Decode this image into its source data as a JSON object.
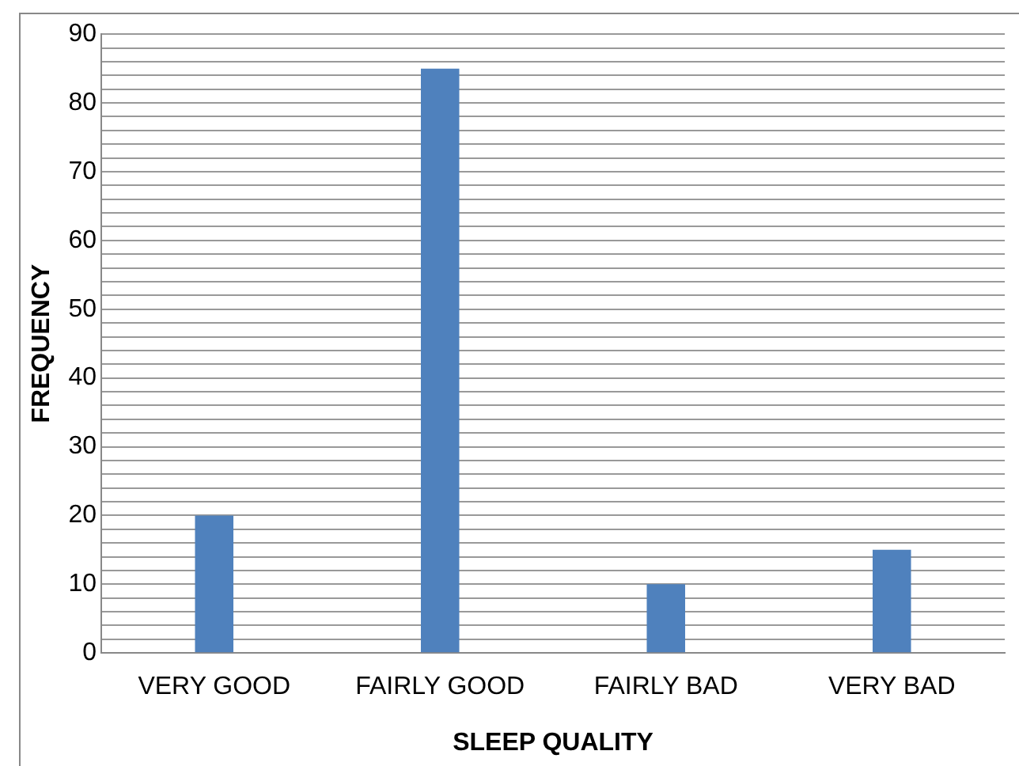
{
  "chart_data": {
    "type": "bar",
    "xlabel": "SLEEP QUALITY",
    "ylabel": "FREQUENCY",
    "categories": [
      "VERY GOOD",
      "FAIRLY GOOD",
      "FAIRLY BAD",
      "VERY BAD"
    ],
    "values": [
      20,
      85,
      10,
      15
    ],
    "color": "#4f81bd",
    "ylim": [
      0,
      90
    ],
    "yticks": [
      0,
      {
        "value": 2,
        "label": null
      },
      {
        "value": 4,
        "label": null
      },
      {
        "value": 6,
        "label": null
      },
      {
        "value": 8,
        "label": null
      },
      10,
      {
        "value": 12,
        "label": null
      },
      {
        "value": 14,
        "label": null
      },
      {
        "value": 16,
        "label": null
      },
      {
        "value": 18,
        "label": null
      },
      20,
      {
        "value": 22,
        "label": null
      },
      {
        "value": 24,
        "label": null
      },
      {
        "value": 26,
        "label": null
      },
      {
        "value": 28,
        "label": null
      },
      30,
      {
        "value": 32,
        "label": null
      },
      {
        "value": 34,
        "label": null
      },
      {
        "value": 36,
        "label": null
      },
      {
        "value": 38,
        "label": null
      },
      40,
      {
        "value": 42,
        "label": null
      },
      {
        "value": 44,
        "label": null
      },
      {
        "value": 46,
        "label": null
      },
      {
        "value": 48,
        "label": null
      },
      50,
      {
        "value": 52,
        "label": null
      },
      {
        "value": 54,
        "label": null
      },
      {
        "value": 56,
        "label": null
      },
      {
        "value": 58,
        "label": null
      },
      60,
      {
        "value": 62,
        "label": null
      },
      {
        "value": 64,
        "label": null
      },
      {
        "value": 66,
        "label": null
      },
      {
        "value": 68,
        "label": null
      },
      70,
      {
        "value": 72,
        "label": null
      },
      {
        "value": 74,
        "label": null
      },
      {
        "value": 76,
        "label": null
      },
      {
        "value": 78,
        "label": null
      },
      80,
      {
        "value": 82,
        "label": null
      },
      {
        "value": 84,
        "label": null
      },
      {
        "value": 86,
        "label": null
      },
      {
        "value": 88,
        "label": null
      },
      90
    ],
    "grid": "y",
    "legend": false
  }
}
